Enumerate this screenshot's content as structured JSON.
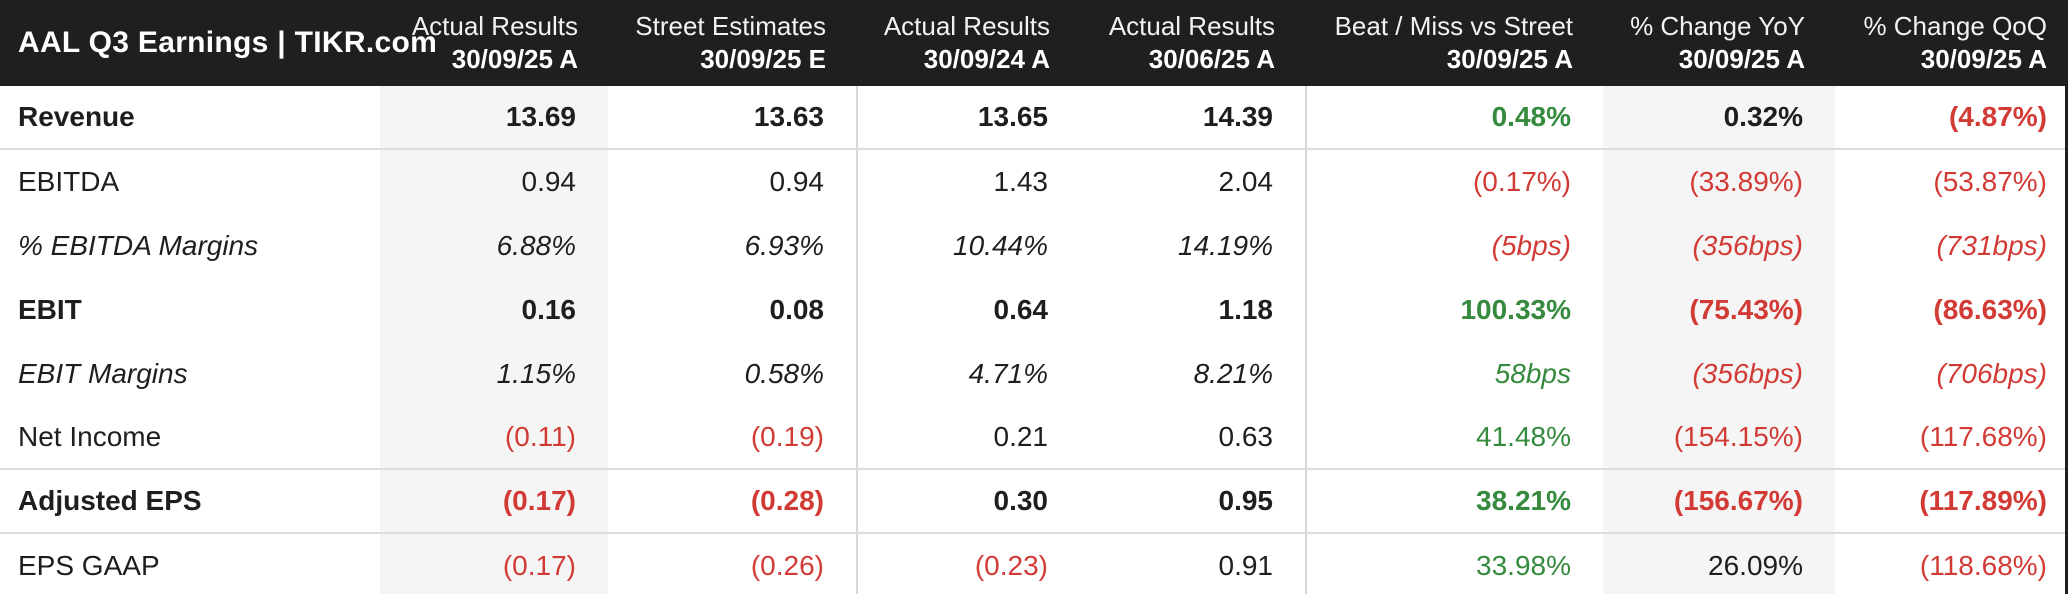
{
  "chart_data": {
    "type": "table",
    "title": "AAL Q3 Earnings | TIKR.com",
    "columns": [
      {
        "label": "Actual Results",
        "period": "30/09/25 A"
      },
      {
        "label": "Street Estimates",
        "period": "30/09/25 E"
      },
      {
        "label": "Actual Results",
        "period": "30/09/24 A"
      },
      {
        "label": "Actual Results",
        "period": "30/06/25 A"
      },
      {
        "label": "Beat / Miss vs Street",
        "period": "30/09/25 A"
      },
      {
        "label": "% Change YoY",
        "period": "30/09/25 A"
      },
      {
        "label": "% Change QoQ",
        "period": "30/09/25 A"
      }
    ],
    "rows": [
      {
        "label": "Revenue",
        "style": "bold",
        "values": [
          "13.69",
          "13.63",
          "13.65",
          "14.39",
          "0.48%",
          "0.32%",
          "(4.87%)"
        ],
        "value_colors": [
          "dark",
          "dark",
          "dark",
          "dark",
          "green",
          "dark",
          "red"
        ]
      },
      {
        "label": "EBITDA",
        "style": "regular",
        "values": [
          "0.94",
          "0.94",
          "1.43",
          "2.04",
          "(0.17%)",
          "(33.89%)",
          "(53.87%)"
        ],
        "value_colors": [
          "dark",
          "dark",
          "dark",
          "dark",
          "red",
          "red",
          "red"
        ]
      },
      {
        "label": "% EBITDA Margins",
        "style": "italic",
        "values": [
          "6.88%",
          "6.93%",
          "10.44%",
          "14.19%",
          "(5bps)",
          "(356bps)",
          "(731bps)"
        ],
        "value_colors": [
          "dark",
          "dark",
          "dark",
          "dark",
          "red",
          "red",
          "red"
        ]
      },
      {
        "label": "EBIT",
        "style": "bold",
        "values": [
          "0.16",
          "0.08",
          "0.64",
          "1.18",
          "100.33%",
          "(75.43%)",
          "(86.63%)"
        ],
        "value_colors": [
          "dark",
          "dark",
          "dark",
          "dark",
          "green",
          "red",
          "red"
        ]
      },
      {
        "label": "EBIT Margins",
        "style": "italic",
        "values": [
          "1.15%",
          "0.58%",
          "4.71%",
          "8.21%",
          "58bps",
          "(356bps)",
          "(706bps)"
        ],
        "value_colors": [
          "dark",
          "dark",
          "dark",
          "dark",
          "green",
          "red",
          "red"
        ]
      },
      {
        "label": "Net Income",
        "style": "regular",
        "values": [
          "(0.11)",
          "(0.19)",
          "0.21",
          "0.63",
          "41.48%",
          "(154.15%)",
          "(117.68%)"
        ],
        "value_colors": [
          "red",
          "red",
          "dark",
          "dark",
          "green",
          "red",
          "red"
        ]
      },
      {
        "label": "Adjusted EPS",
        "style": "bold",
        "values": [
          "(0.17)",
          "(0.28)",
          "0.30",
          "0.95",
          "38.21%",
          "(156.67%)",
          "(117.89%)"
        ],
        "value_colors": [
          "red",
          "red",
          "dark",
          "dark",
          "green",
          "red",
          "red"
        ]
      },
      {
        "label": "EPS GAAP",
        "style": "regular",
        "values": [
          "(0.17)",
          "(0.26)",
          "(0.23)",
          "0.91",
          "33.98%",
          "26.09%",
          "(118.68%)"
        ],
        "value_colors": [
          "red",
          "red",
          "red",
          "dark",
          "green",
          "dark",
          "red"
        ]
      }
    ],
    "colors": {
      "positive": "#358a3e",
      "negative": "#d23b35",
      "header_bg": "#201e1e",
      "stripe_bg": "#f5f5f5",
      "divider": "#dcdcdc",
      "text": "#1e1e1e"
    },
    "layout_hints": {
      "striped_columns": [
        "Actual Results 30/09/25 A",
        "% Change YoY 30/09/25 A"
      ],
      "separator_rows_below": [
        "Revenue",
        "Net Income",
        "Adjusted EPS"
      ]
    }
  }
}
